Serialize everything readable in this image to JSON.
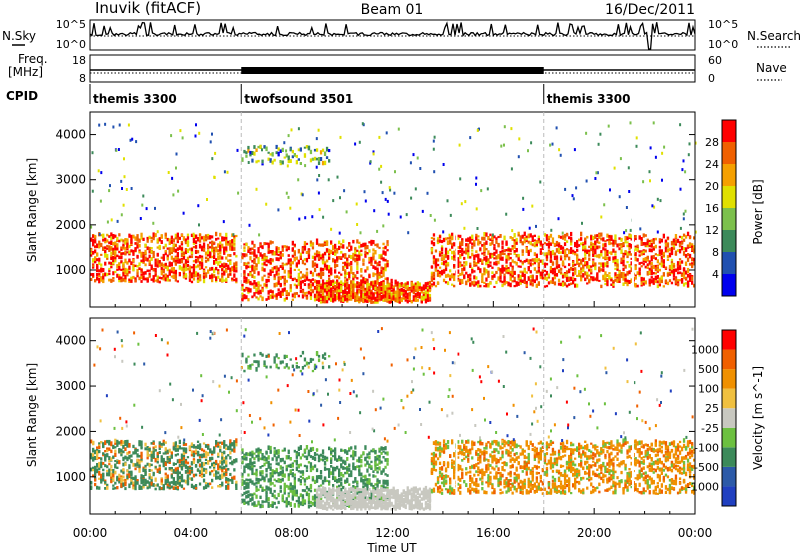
{
  "header": {
    "title": "Inuvik (fitACF)",
    "beam": "Beam 01",
    "date": "16/Dec/2011"
  },
  "noise_panel": {
    "left_label": "N.Sky",
    "right_label": "N.Search",
    "y_ticks_left": [
      "10^5",
      "10^0"
    ],
    "y_ticks_right": [
      "10^5",
      "10^0"
    ]
  },
  "freq_panel": {
    "left_label_1": "Freq.",
    "left_label_2": "[MHz]",
    "right_label": "Nave",
    "y_ticks_left": [
      "18",
      "8"
    ],
    "y_ticks_right": [
      "60",
      "0"
    ]
  },
  "cpid_panel": {
    "label": "CPID",
    "segments": [
      {
        "name": "themis 3300",
        "start_h": 0,
        "end_h": 6
      },
      {
        "name": "twofsound 3501",
        "start_h": 6,
        "end_h": 18
      },
      {
        "name": "themis 3300",
        "start_h": 18,
        "end_h": 24
      }
    ]
  },
  "x_axis": {
    "label": "Time UT",
    "ticks": [
      "00:00",
      "04:00",
      "08:00",
      "12:00",
      "16:00",
      "20:00",
      "00:00"
    ]
  },
  "power_panel": {
    "ylabel": "Slant Range [km]",
    "yticks": [
      "1000",
      "2000",
      "3000",
      "4000"
    ],
    "colorbar_label": "Power [dB]",
    "colorbar_ticks": [
      "4",
      "8",
      "12",
      "16",
      "20",
      "24",
      "28"
    ],
    "colors": [
      "#0000ee",
      "#2050b0",
      "#3c8a5a",
      "#7cc04c",
      "#e0e000",
      "#f5a000",
      "#f06000",
      "#ff0000"
    ]
  },
  "velocity_panel": {
    "ylabel": "Slant Range [km]",
    "yticks": [
      "1000",
      "2000",
      "3000",
      "4000"
    ],
    "colorbar_label": "Velocity [m s^-1]",
    "colorbar_ticks": [
      "1000",
      "500",
      "100",
      "25",
      "-25",
      "-100",
      "-500",
      "-1000"
    ],
    "colors": [
      "#2040c0",
      "#2c5aa8",
      "#3c8a5a",
      "#6cc040",
      "#c8c8c0",
      "#f0c040",
      "#f09000",
      "#f06000",
      "#ff0000"
    ]
  },
  "chart_data": {
    "type": "heatmap",
    "title": "Inuvik (fitACF)",
    "xlabel": "Time UT",
    "ylabel": "Slant Range [km]",
    "xlim": [
      0,
      24
    ],
    "ylim": [
      180,
      4500
    ],
    "x_unit": "hours UT",
    "echo_regions": [
      {
        "name": "main band",
        "start_h": 0.0,
        "end_h": 5.8,
        "r_lo": 700,
        "r_hi": 1750
      },
      {
        "name": "main band",
        "start_h": 6.0,
        "end_h": 11.8,
        "r_lo": 300,
        "r_hi": 1600
      },
      {
        "name": "ground scatter",
        "start_h": 9.0,
        "end_h": 13.5,
        "r_lo": 250,
        "r_hi": 700
      },
      {
        "name": "main band",
        "start_h": 13.5,
        "end_h": 24.0,
        "r_lo": 600,
        "r_hi": 1750
      },
      {
        "name": "far range",
        "start_h": 6.0,
        "end_h": 9.5,
        "r_lo": 3300,
        "r_hi": 3700
      }
    ],
    "power_range_db": [
      0,
      30
    ],
    "velocity_range_ms": [
      -1000,
      1000
    ]
  }
}
